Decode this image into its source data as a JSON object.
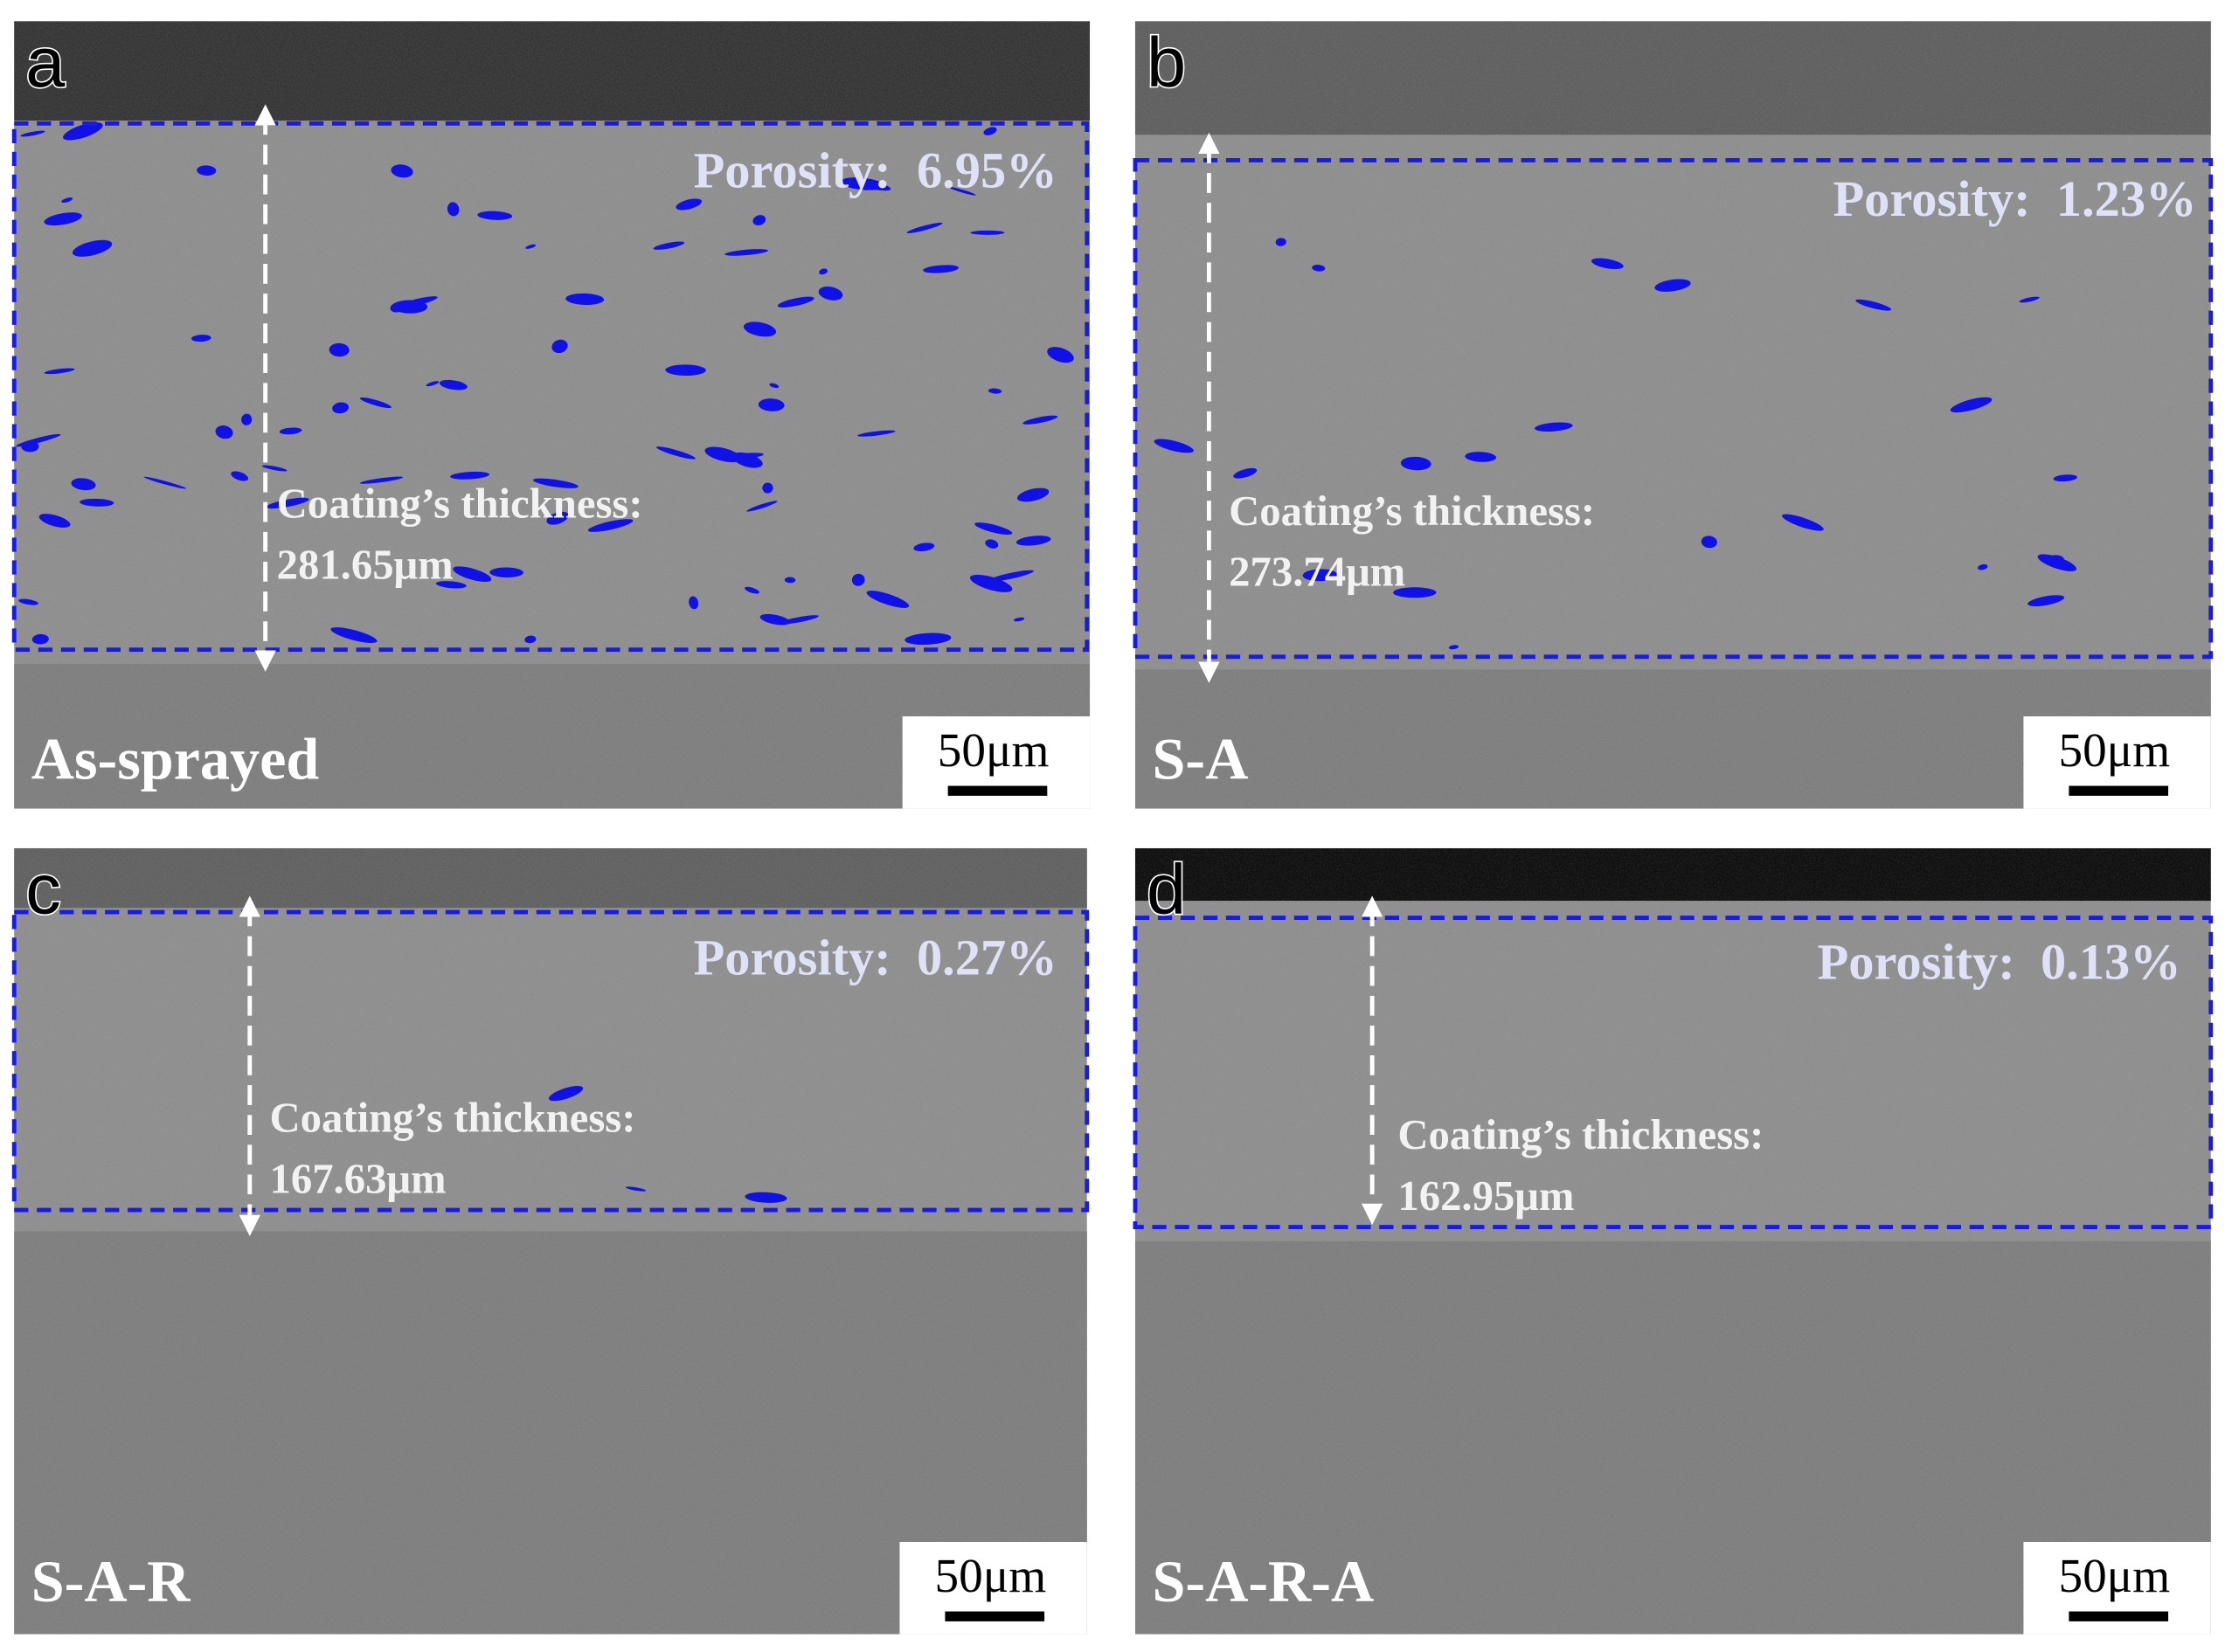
{
  "panels": [
    {
      "letter": "a",
      "porosity": "Porosity:  6.95%",
      "thickness_label": "Coating’s thickness:",
      "thickness": "281.65μm",
      "sample": "As-sprayed",
      "scale_bar": "50μm"
    },
    {
      "letter": "b",
      "porosity": "Porosity:  1.23%",
      "thickness_label": "Coating’s thickness:",
      "thickness": "273.74μm",
      "sample": "S-A",
      "scale_bar": "50μm"
    },
    {
      "letter": "c",
      "porosity": "Porosity:  0.27%",
      "thickness_label": "Coating’s thickness:",
      "thickness": "167.63μm",
      "sample": "S-A-R",
      "scale_bar": "50μm"
    },
    {
      "letter": "d",
      "porosity": "Porosity:  0.13%",
      "thickness_label": "Coating’s thickness:",
      "thickness": "162.95μm",
      "sample": "S-A-R-A",
      "scale_bar": "50μm"
    }
  ]
}
